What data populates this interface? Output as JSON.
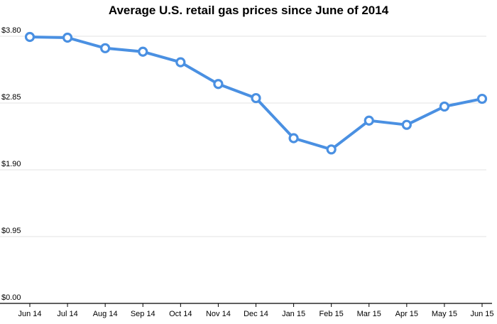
{
  "chart_data": {
    "type": "line",
    "title": "Average U.S. retail gas prices since June of 2014",
    "xlabel": "",
    "ylabel": "",
    "categories": [
      "Jun 14",
      "Jul 14",
      "Aug 14",
      "Sep 14",
      "Oct 14",
      "Nov 14",
      "Dec 14",
      "Jan 15",
      "Feb 15",
      "Mar 15",
      "Apr 15",
      "May 15",
      "Jun 15"
    ],
    "series": [
      {
        "name": "Average U.S. retail gas price",
        "values": [
          3.79,
          3.78,
          3.63,
          3.58,
          3.43,
          3.12,
          2.92,
          2.35,
          2.19,
          2.6,
          2.54,
          2.8,
          2.91
        ]
      }
    ],
    "ylim": [
      0,
      3.8
    ],
    "yticks": [
      0,
      0.95,
      1.9,
      2.85,
      3.8
    ],
    "ytick_labels": [
      "$0.00",
      "$0.95",
      "$1.90",
      "$2.85",
      "$3.80"
    ],
    "grid": true,
    "legend": "none",
    "colors": {
      "line": "#4a90e2",
      "marker_fill": "#ffffff",
      "grid": "#e3e3e3",
      "axis": "#000000"
    }
  }
}
